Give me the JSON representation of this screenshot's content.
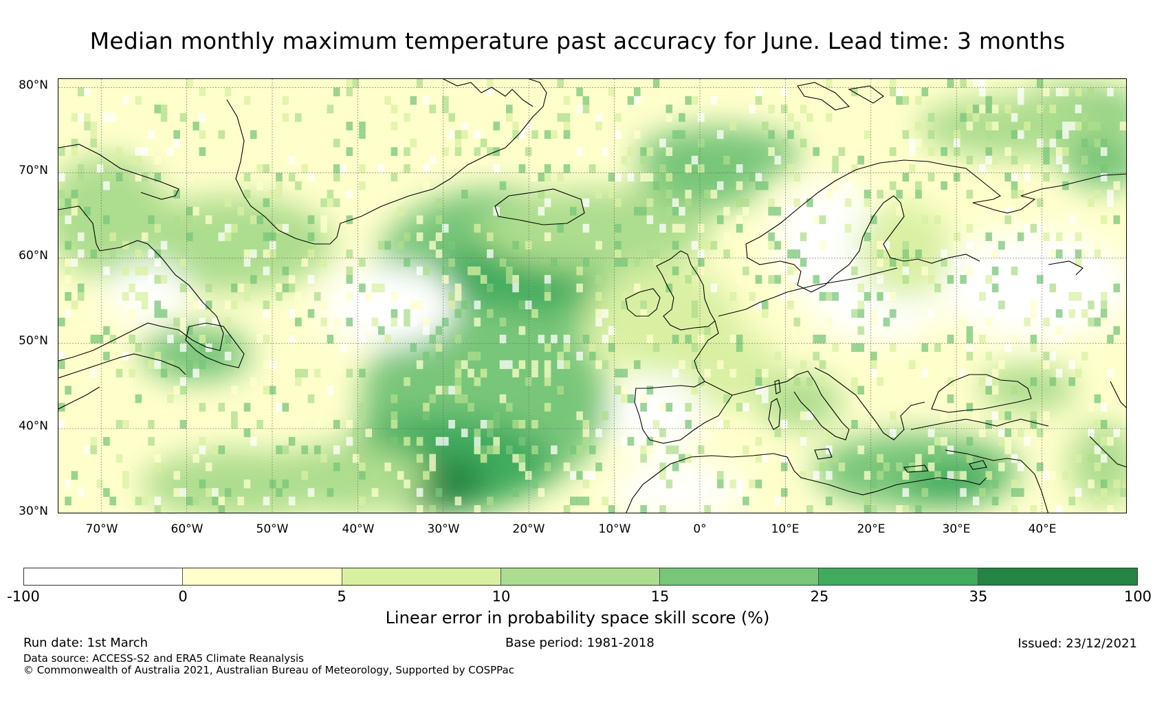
{
  "title": "Median monthly maximum temperature past accuracy for June. Lead time: 3 months",
  "map": {
    "lat_labels": [
      "80°N",
      "70°N",
      "60°N",
      "50°N",
      "40°N",
      "30°N"
    ],
    "lon_labels": [
      "70°W",
      "60°W",
      "50°W",
      "40°W",
      "30°W",
      "20°W",
      "10°W",
      "0°",
      "10°E",
      "20°E",
      "30°E",
      "40°E"
    ],
    "lat_range": [
      30,
      81
    ],
    "lon_range": [
      -75,
      50
    ]
  },
  "legend": {
    "colors": [
      "#ffffff",
      "#ffffcc",
      "#d9f0a3",
      "#addd8e",
      "#78c679",
      "#41ab5d",
      "#238443"
    ],
    "bounds": [
      -100,
      0,
      5,
      10,
      15,
      25,
      35,
      100
    ],
    "tick_labels": [
      "-100",
      "0",
      "5",
      "10",
      "15",
      "25",
      "35",
      "100"
    ],
    "label": "Linear error in probability space skill score (%)"
  },
  "footer": {
    "run_date": "Run date: 1st March",
    "base_period": "Base period: 1981-2018",
    "issued": "Issued: 23/12/2021",
    "data_source": "Data source: ACCESS-S2 and ERA5 Climate Reanalysis",
    "copyright": "© Commonwealth of Australia 2021, Australian Bureau of Meteorology, Supported by COSPPac"
  }
}
